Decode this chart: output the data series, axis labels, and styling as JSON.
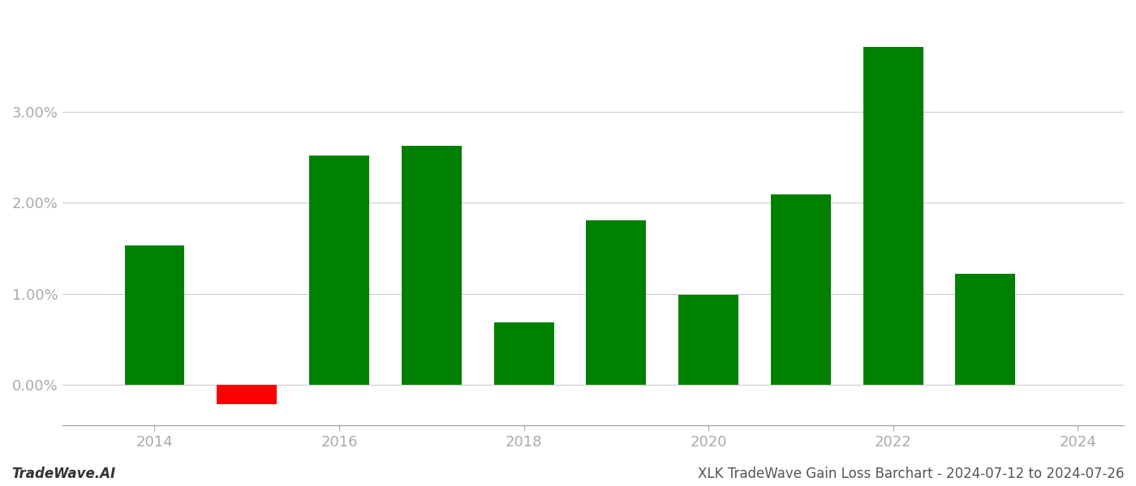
{
  "years": [
    2014,
    2015,
    2016,
    2017,
    2018,
    2019,
    2020,
    2021,
    2022,
    2023
  ],
  "values": [
    1.53,
    -0.22,
    2.52,
    2.63,
    0.68,
    1.81,
    0.99,
    2.09,
    3.72,
    1.22
  ],
  "colors": [
    "#008000",
    "#ff0000",
    "#008000",
    "#008000",
    "#008000",
    "#008000",
    "#008000",
    "#008000",
    "#008000",
    "#008000"
  ],
  "title": "XLK TradeWave Gain Loss Barchart - 2024-07-12 to 2024-07-26",
  "watermark": "TradeWave.AI",
  "ylim_min": -0.45,
  "ylim_max": 4.1,
  "xlim_min": 2013.0,
  "xlim_max": 2024.5,
  "background_color": "#ffffff",
  "grid_color": "#cccccc",
  "bar_width": 0.65,
  "title_fontsize": 12,
  "watermark_fontsize": 12,
  "tick_fontsize": 13,
  "tick_color": "#aaaaaa",
  "xticks": [
    2014,
    2016,
    2018,
    2020,
    2022,
    2024
  ],
  "yticks": [
    0.0,
    1.0,
    2.0,
    3.0
  ]
}
